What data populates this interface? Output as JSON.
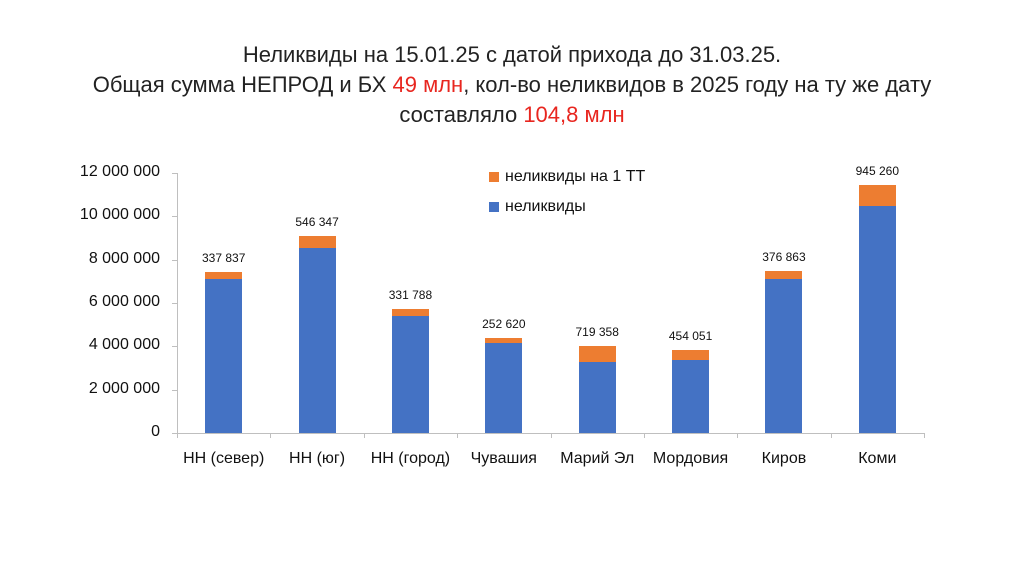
{
  "title": {
    "line1": "Неликвиды на 15.01.25 с датой прихода до 31.03.25.",
    "line2_pre": "Общая сумма НЕПРОД и БХ ",
    "line2_red": "49 млн",
    "line2_post": ", кол-во неликвидов в 2025 году на ту же дату",
    "line3_pre": "составляло ",
    "line3_red": "104,8 млн"
  },
  "colors": {
    "blue": "#4472c4",
    "orange": "#ed7d31",
    "accent_red": "#e8261f"
  },
  "legend": [
    {
      "label": "неликвиды на 1 ТТ",
      "color": "#ed7d31"
    },
    {
      "label": "неликвиды",
      "color": "#4472c4"
    }
  ],
  "y_ticks": [
    "0",
    "2 000 000",
    "4 000 000",
    "6 000 000",
    "8 000 000",
    "10 000 000",
    "12 000 000"
  ],
  "chart_data": {
    "type": "bar",
    "stacked": true,
    "title": "Неликвиды на 15.01.25 с датой прихода до 31.03.25. Общая сумма НЕПРОД и БХ 49 млн, кол-во неликвидов в 2025 году на ту же дату составляло 104,8 млн",
    "categories": [
      "НН (север)",
      "НН (юг)",
      "НН (город)",
      "Чувашия",
      "Марий Эл",
      "Мордовия",
      "Киров",
      "Коми"
    ],
    "series": [
      {
        "name": "неликвиды",
        "color": "#4472c4",
        "values": [
          7100000,
          8540000,
          5400000,
          4150000,
          3280000,
          3370000,
          7100000,
          10480000
        ]
      },
      {
        "name": "неликвиды на 1 ТТ",
        "color": "#ed7d31",
        "values": [
          337837,
          546347,
          331788,
          252620,
          719358,
          454051,
          376863,
          945260
        ]
      }
    ],
    "data_labels": [
      "337 837",
      "546 347",
      "331 788",
      "252 620",
      "719 358",
      "454 051",
      "376 863",
      "945 260"
    ],
    "xlabel": "",
    "ylabel": "",
    "ylim": [
      0,
      12000000
    ],
    "yticks": [
      0,
      2000000,
      4000000,
      6000000,
      8000000,
      10000000,
      12000000
    ],
    "grid": false,
    "legend_position": "top-center-inside"
  }
}
